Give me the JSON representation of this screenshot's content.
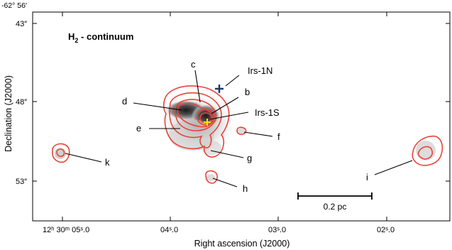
{
  "figure": {
    "panel_title": "H",
    "panel_title_sub": "2",
    "panel_title_rest": " - continuum",
    "corner_dec_label": "-62° 56′",
    "y_axis_label": "Declination (J2000)",
    "x_axis_label": "Right ascension (J2000)",
    "y_ticks": [
      "43″",
      "48″",
      "53″"
    ],
    "x_ticks": [
      "12ʰ 30ᵐ 05ˢ.0",
      "04ˢ.0",
      "03ˢ.0",
      "02ˢ.0"
    ],
    "scale_bar_label": "0.2 pc",
    "source_labels": {
      "irs1n": "Irs-1N",
      "irs1s": "Irs-1S",
      "a_b": "b",
      "a_c": "c",
      "a_d": "d",
      "a_e": "e",
      "a_f": "f",
      "a_g": "g",
      "a_h": "h",
      "a_i": "i",
      "a_k": "k"
    },
    "colors": {
      "contour": "#e8433a",
      "irs1n_marker": "#1f3a6b",
      "irs1s_marker": "#f2e600",
      "frame": "#000000"
    }
  }
}
